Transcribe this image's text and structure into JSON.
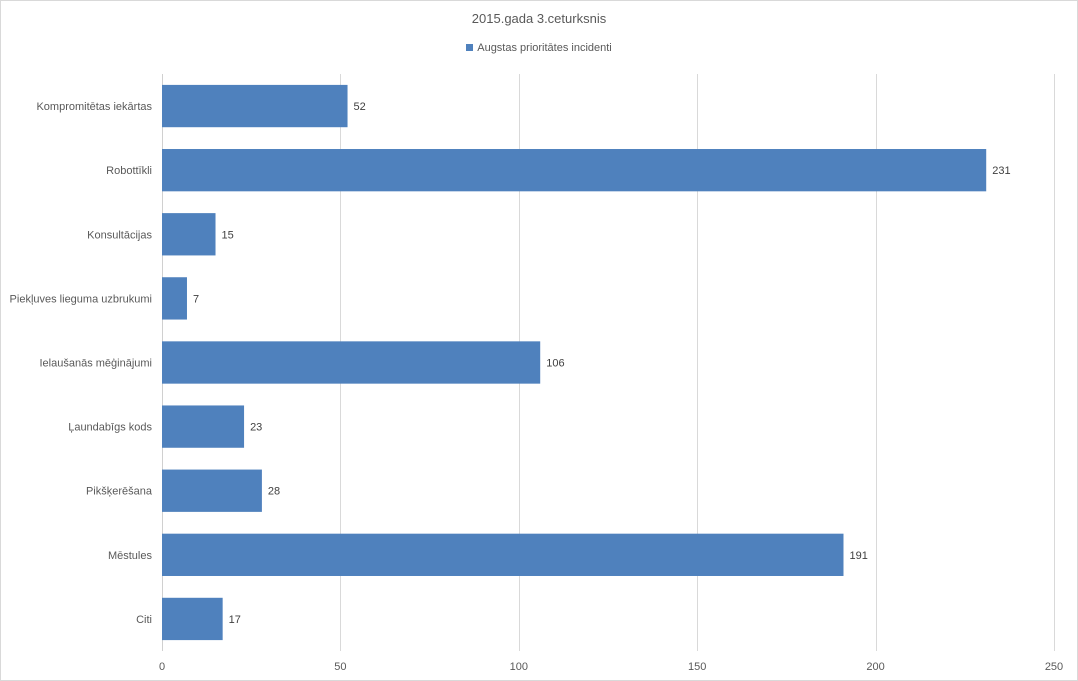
{
  "chart_data": {
    "type": "bar",
    "orientation": "horizontal",
    "title": "2015.gada 3.ceturksnis",
    "xlabel": "",
    "ylabel": "",
    "categories": [
      "Kompromitētas iekārtas",
      "Robottīkli",
      "Konsultācijas",
      "Piekļuves lieguma uzbrukumi",
      "Ielaušanās mēģinājumi",
      "Ļaundabīgs kods",
      "Pikšķerēšana",
      "Mēstules",
      "Citi"
    ],
    "series": [
      {
        "name": "Augstas prioritātes incidenti",
        "values": [
          52,
          231,
          15,
          7,
          106,
          23,
          28,
          191,
          17
        ],
        "color": "#4f81bd"
      }
    ],
    "xlim": [
      0,
      250
    ],
    "xticks": [
      0,
      50,
      100,
      150,
      200,
      250
    ],
    "grid": true,
    "legend": "top",
    "data_labels": true
  }
}
